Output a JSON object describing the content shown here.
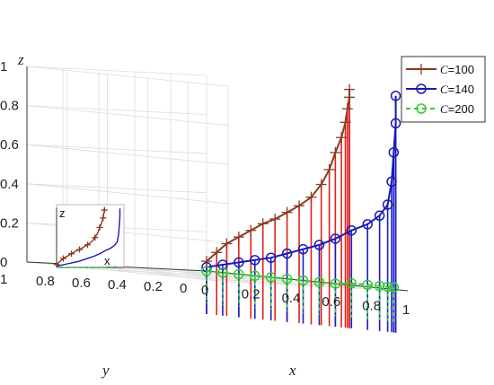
{
  "chart_data": {
    "type": "line",
    "projection": "3d",
    "xlabel": "x",
    "ylabel": "y",
    "zlabel": "z",
    "xlim": [
      0,
      1
    ],
    "ylim": [
      0,
      1
    ],
    "zlim": [
      0,
      1
    ],
    "xticks": [
      "0",
      "0.2",
      "0.4",
      "0.6",
      "0.8",
      "1"
    ],
    "yticks": [
      "0",
      "0.2",
      "0.4",
      "0.6",
      "0.8",
      "1"
    ],
    "zticks": [
      "0",
      "0.2",
      "0.4",
      "0.6",
      "0.8",
      "1"
    ],
    "grid": true,
    "legend_position": "top-right",
    "legend_prefix": "C",
    "series": [
      {
        "name": "=100",
        "color": "#8B3A22",
        "stem_color": "#e0221b",
        "marker": "plus",
        "line": "solid",
        "points": [
          {
            "x": 0.0,
            "y": 0.0,
            "z": 0.05
          },
          {
            "x": 0.05,
            "y": 0.0,
            "z": 0.1
          },
          {
            "x": 0.1,
            "y": 0.0,
            "z": 0.15
          },
          {
            "x": 0.16,
            "y": 0.0,
            "z": 0.19
          },
          {
            "x": 0.22,
            "y": 0.0,
            "z": 0.23
          },
          {
            "x": 0.28,
            "y": 0.0,
            "z": 0.27
          },
          {
            "x": 0.34,
            "y": 0.0,
            "z": 0.3
          },
          {
            "x": 0.4,
            "y": 0.0,
            "z": 0.34
          },
          {
            "x": 0.46,
            "y": 0.0,
            "z": 0.38
          },
          {
            "x": 0.52,
            "y": 0.0,
            "z": 0.43
          },
          {
            "x": 0.57,
            "y": 0.0,
            "z": 0.5
          },
          {
            "x": 0.61,
            "y": 0.0,
            "z": 0.58
          },
          {
            "x": 0.64,
            "y": 0.0,
            "z": 0.67
          },
          {
            "x": 0.67,
            "y": 0.0,
            "z": 0.75
          },
          {
            "x": 0.69,
            "y": 0.0,
            "z": 0.83
          },
          {
            "x": 0.7,
            "y": 0.0,
            "z": 0.9
          },
          {
            "x": 0.71,
            "y": 0.0,
            "z": 0.96
          },
          {
            "x": 0.71,
            "y": 0.0,
            "z": 1.0
          }
        ]
      },
      {
        "name": "=140",
        "color": "#1a1ab4",
        "stem_color": "#1a1acc",
        "marker": "circle",
        "line": "solid",
        "points": [
          {
            "x": 0.0,
            "y": 0.0,
            "z": 0.02
          },
          {
            "x": 0.08,
            "y": 0.0,
            "z": 0.04
          },
          {
            "x": 0.16,
            "y": 0.0,
            "z": 0.06
          },
          {
            "x": 0.24,
            "y": 0.0,
            "z": 0.08
          },
          {
            "x": 0.32,
            "y": 0.0,
            "z": 0.1
          },
          {
            "x": 0.4,
            "y": 0.0,
            "z": 0.13
          },
          {
            "x": 0.48,
            "y": 0.0,
            "z": 0.16
          },
          {
            "x": 0.56,
            "y": 0.0,
            "z": 0.19
          },
          {
            "x": 0.64,
            "y": 0.0,
            "z": 0.23
          },
          {
            "x": 0.72,
            "y": 0.0,
            "z": 0.28
          },
          {
            "x": 0.8,
            "y": 0.0,
            "z": 0.32
          },
          {
            "x": 0.86,
            "y": 0.0,
            "z": 0.37
          },
          {
            "x": 0.9,
            "y": 0.0,
            "z": 0.43
          },
          {
            "x": 0.92,
            "y": 0.0,
            "z": 0.55
          },
          {
            "x": 0.93,
            "y": 0.0,
            "z": 0.7
          },
          {
            "x": 0.94,
            "y": 0.0,
            "z": 0.85
          },
          {
            "x": 0.94,
            "y": 0.0,
            "z": 0.99
          }
        ]
      },
      {
        "name": "=200",
        "color": "#33cc33",
        "stem_color": "#33cc33",
        "marker": "circle",
        "line": "dashed",
        "points": [
          {
            "x": 0.0,
            "y": 0.0,
            "z": 0.0
          },
          {
            "x": 0.08,
            "y": 0.0,
            "z": 0.0
          },
          {
            "x": 0.16,
            "y": 0.0,
            "z": 0.0
          },
          {
            "x": 0.24,
            "y": 0.0,
            "z": 0.0
          },
          {
            "x": 0.32,
            "y": 0.0,
            "z": 0.0
          },
          {
            "x": 0.4,
            "y": 0.0,
            "z": 0.0
          },
          {
            "x": 0.48,
            "y": 0.0,
            "z": 0.0
          },
          {
            "x": 0.56,
            "y": 0.0,
            "z": 0.0
          },
          {
            "x": 0.64,
            "y": 0.0,
            "z": 0.0
          },
          {
            "x": 0.72,
            "y": 0.0,
            "z": 0.01
          },
          {
            "x": 0.8,
            "y": 0.0,
            "z": 0.01
          },
          {
            "x": 0.86,
            "y": 0.0,
            "z": 0.01
          },
          {
            "x": 0.9,
            "y": 0.0,
            "z": 0.01
          },
          {
            "x": 0.93,
            "y": 0.0,
            "z": 0.01
          }
        ]
      }
    ],
    "inset": {
      "xlabel": "x",
      "zlabel": "z"
    }
  }
}
